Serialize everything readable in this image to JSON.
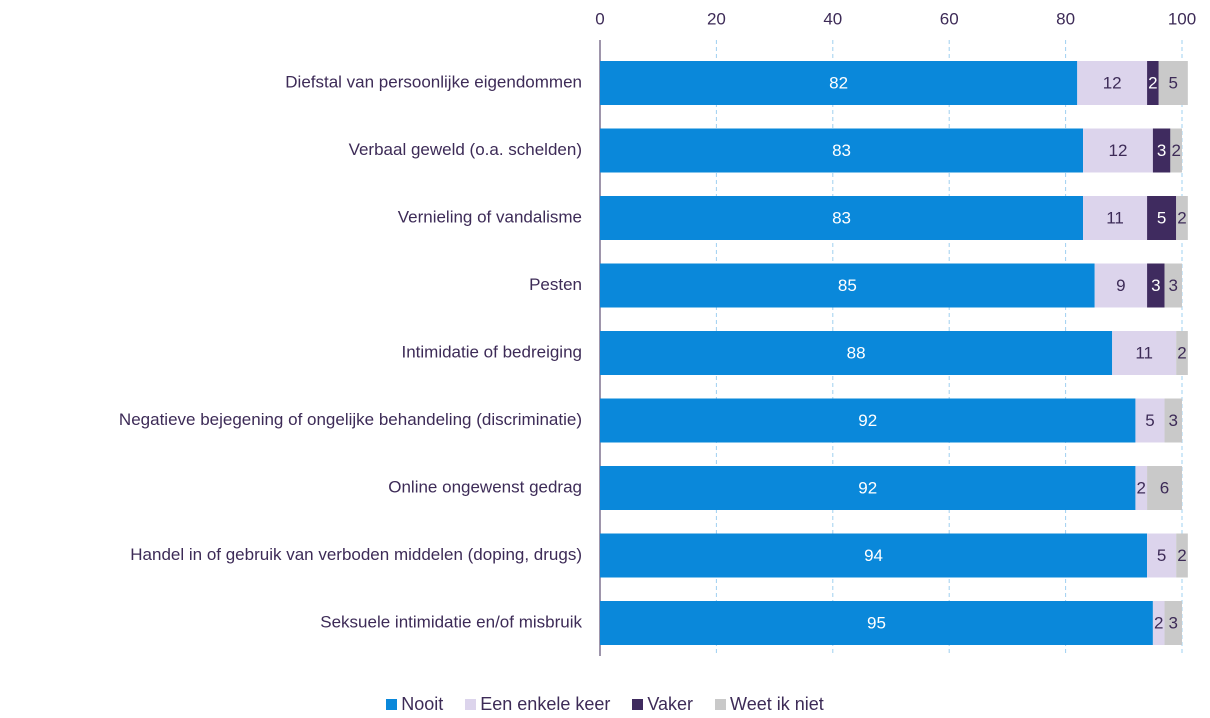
{
  "chart_data": {
    "type": "stacked_barh",
    "categories": [
      "Diefstal van persoonlijke eigendommen",
      "Verbaal geweld (o.a.  schelden)",
      "Vernieling of vandalisme",
      "Pesten",
      "Intimidatie of bedreiging",
      "Negatieve bejegening of ongelijke behandeling (discriminatie)",
      "Online ongewenst gedrag",
      "Handel in of gebruik van verboden middelen (doping, drugs)",
      "Seksuele intimidatie en/of misbruik"
    ],
    "series": [
      {
        "name": "Nooit",
        "color": "#0a88da",
        "values": [
          82,
          83,
          83,
          85,
          88,
          92,
          92,
          94,
          95
        ]
      },
      {
        "name": "Een enkele keer",
        "color": "#dcd4ec",
        "values": [
          12,
          12,
          11,
          9,
          11,
          5,
          2,
          5,
          2
        ]
      },
      {
        "name": "Vaker",
        "color": "#3f2b5f",
        "values": [
          2,
          3,
          5,
          3,
          null,
          null,
          null,
          null,
          null
        ]
      },
      {
        "name": "Weet ik niet",
        "color": "#c9c9c9",
        "values": [
          5,
          2,
          2,
          3,
          2,
          3,
          6,
          2,
          3
        ]
      }
    ],
    "xlim": [
      0,
      100
    ],
    "xticks": [
      0,
      20,
      40,
      60,
      80,
      100
    ],
    "grid": true
  }
}
